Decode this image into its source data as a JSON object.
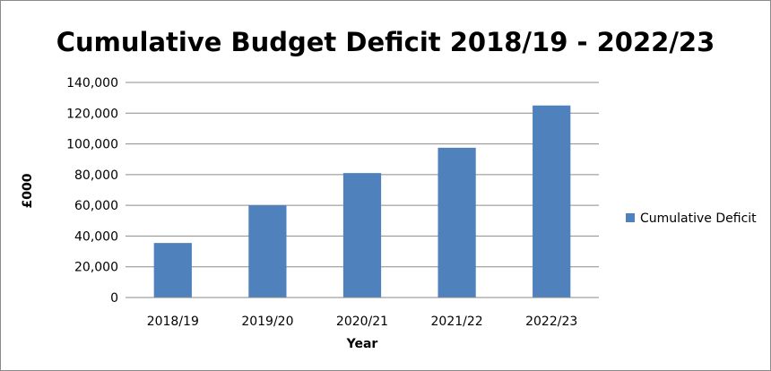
{
  "chart_data": {
    "type": "bar",
    "title": "Cumulative Budget Deficit 2018/19 - 2022/23",
    "xlabel": "Year",
    "ylabel": "£000",
    "categories": [
      "2018/19",
      "2019/20",
      "2020/21",
      "2021/22",
      "2022/23"
    ],
    "series": [
      {
        "name": "Cumulative Deficit",
        "values": [
          35500,
          60000,
          81000,
          97500,
          125000
        ],
        "color": "#4f81bd"
      }
    ],
    "yticks": [
      "0",
      "20,000",
      "40,000",
      "60,000",
      "80,000",
      "100,000",
      "120,000",
      "140,000"
    ],
    "ylim": [
      0,
      140000
    ],
    "grid": true,
    "legend_position": "right"
  }
}
